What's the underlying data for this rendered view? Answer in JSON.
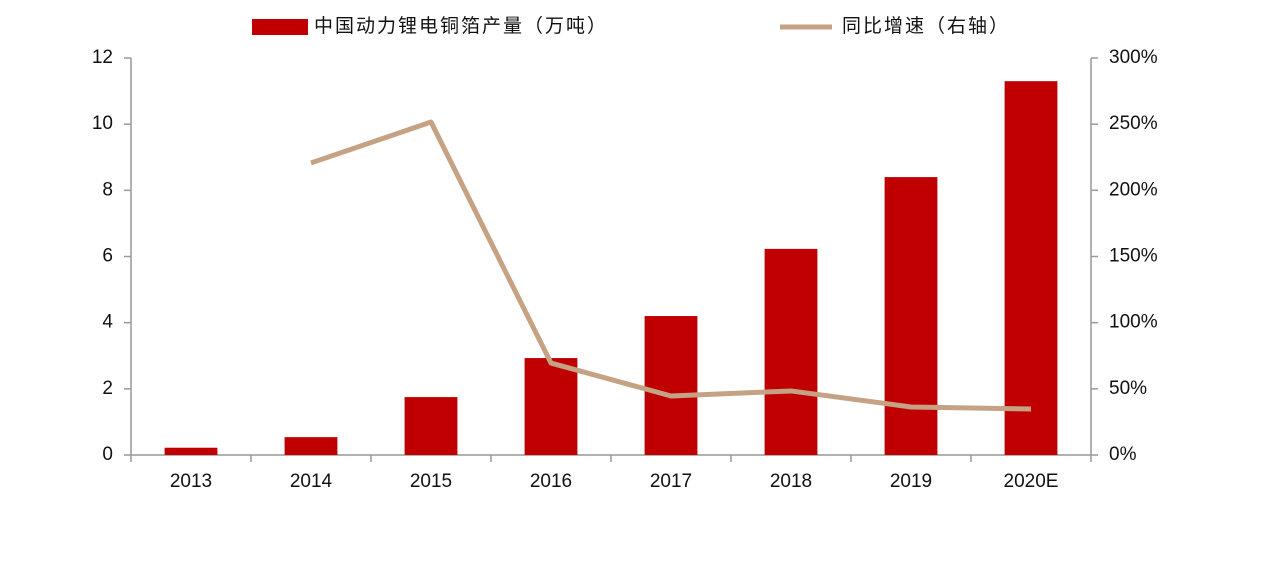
{
  "chart_data": {
    "type": "bar",
    "categories": [
      "2013",
      "2014",
      "2015",
      "2016",
      "2017",
      "2018",
      "2019",
      "2020E"
    ],
    "series": [
      {
        "name": "中国动力锂电铜箔产量（万吨）",
        "type": "bar",
        "color": "#c00000",
        "values": [
          0.22,
          0.54,
          1.75,
          2.93,
          4.2,
          6.23,
          8.4,
          11.3
        ]
      },
      {
        "name": "同比增速（右轴）",
        "type": "line",
        "axis": "y2",
        "color": "#c4a283",
        "values": [
          null,
          220.7,
          251.6,
          69.5,
          44.6,
          48.4,
          36.3,
          34.8
        ]
      }
    ],
    "ylim": [
      0,
      12
    ],
    "yticks": [
      0,
      2,
      4,
      6,
      8,
      10,
      12
    ],
    "y2lim": [
      0,
      300
    ],
    "y2ticks": [
      {
        "value": 0,
        "label": "0%"
      },
      {
        "value": 50,
        "label": "50%"
      },
      {
        "value": 100,
        "label": "100%"
      },
      {
        "value": 150,
        "label": "150%"
      },
      {
        "value": 200,
        "label": "200%"
      },
      {
        "value": 250,
        "label": "250%"
      },
      {
        "value": 300,
        "label": "300%"
      }
    ],
    "legend": "top",
    "annotation": "8"
  }
}
